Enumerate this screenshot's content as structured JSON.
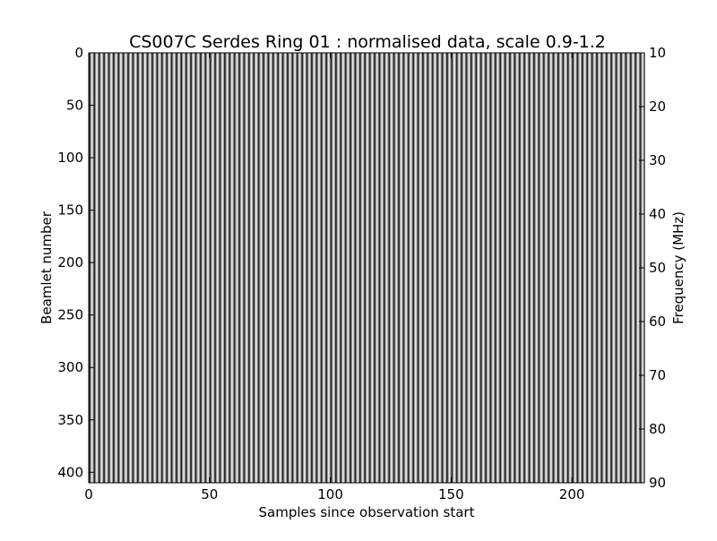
{
  "chart_data": {
    "type": "heatmap",
    "title": "CS007C Serdes Ring 01 : normalised data, scale 0.9-1.2",
    "xlabel": "Samples since observation start",
    "ylabel": "Beamlet number",
    "y2label": "Frequency (MHz)",
    "xlim": [
      0,
      230
    ],
    "ylim": [
      410,
      0
    ],
    "y2lim": [
      90,
      10
    ],
    "xticks": [
      "0",
      "50",
      "100",
      "150",
      "200"
    ],
    "yticks": [
      "0",
      "50",
      "100",
      "150",
      "200",
      "250",
      "300",
      "350",
      "400"
    ],
    "y2ticks": [
      "10",
      "20",
      "30",
      "40",
      "50",
      "60",
      "70",
      "80",
      "90"
    ],
    "colormap": "gray",
    "vmin": 0.9,
    "vmax": 1.2,
    "column_pattern": [
      0.9,
      1.2
    ],
    "grid": false
  }
}
